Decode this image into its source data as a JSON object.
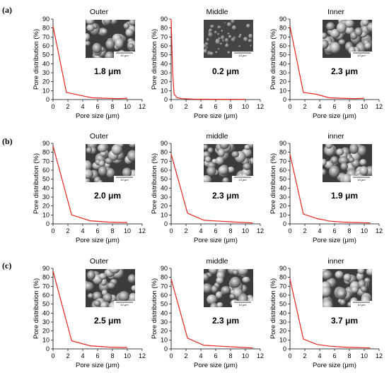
{
  "figure": {
    "row_labels": [
      "(a)",
      "(b)",
      "(c)"
    ]
  },
  "chart_data": [
    {
      "type": "line",
      "row": "(a)",
      "title": "Outer",
      "annotation": "1.8 μm",
      "xlabel": "Pore size (μm)",
      "ylabel": "Pore distribution (%)",
      "xlim": [
        0,
        12
      ],
      "ylim": [
        0,
        90
      ],
      "xticks": [
        0,
        2,
        4,
        6,
        8,
        10,
        12
      ],
      "yticks": [
        0,
        10,
        20,
        30,
        40,
        50,
        60,
        70,
        80,
        90
      ],
      "x": [
        0,
        1.8,
        3.5,
        5.3,
        7,
        8.8,
        10
      ],
      "y": [
        82,
        8,
        5,
        2,
        1.5,
        1,
        1.5
      ],
      "inset_scale_label": "10 μm",
      "line_color": "#e8251e"
    },
    {
      "type": "line",
      "row": "(a)",
      "title": "Middle",
      "annotation": "0.2 μm",
      "xlabel": "Pore size (μm)",
      "ylabel": "Pore distribution (%)",
      "xlim": [
        0,
        12
      ],
      "ylim": [
        0,
        90
      ],
      "xticks": [
        0,
        2,
        4,
        6,
        8,
        10,
        12
      ],
      "yticks": [
        0,
        10,
        20,
        30,
        40,
        50,
        60,
        70,
        80,
        90
      ],
      "x": [
        0,
        0.2,
        0.4,
        0.8,
        1.5,
        3,
        6,
        10
      ],
      "y": [
        90,
        30,
        6,
        2,
        1,
        0.5,
        0.3,
        0.2
      ],
      "inset_scale_label": "10 μm",
      "line_color": "#e8251e"
    },
    {
      "type": "line",
      "row": "(a)",
      "title": "Inner",
      "annotation": "2.3 μm",
      "xlabel": "Pore size (μm)",
      "ylabel": "Pore distribution (%)",
      "xlim": [
        0,
        12
      ],
      "ylim": [
        0,
        90
      ],
      "xticks": [
        0,
        2,
        4,
        6,
        8,
        10,
        12
      ],
      "yticks": [
        0,
        10,
        20,
        30,
        40,
        50,
        60,
        70,
        80,
        90
      ],
      "x": [
        0,
        1.8,
        3.5,
        5.3,
        7,
        8.8,
        10
      ],
      "y": [
        82,
        8,
        6,
        2,
        1.5,
        1,
        1.5
      ],
      "inset_scale_label": "10 μm",
      "line_color": "#e8251e"
    },
    {
      "type": "line",
      "row": "(b)",
      "title": "Outer",
      "annotation": "2.0 μm",
      "xlabel": "Pore size (μm)",
      "ylabel": "Pore distribution (%)",
      "xlim": [
        0,
        12
      ],
      "ylim": [
        0,
        90
      ],
      "xticks": [
        0,
        2,
        4,
        6,
        8,
        10,
        12
      ],
      "yticks": [
        0,
        10,
        20,
        30,
        40,
        50,
        60,
        70,
        80,
        90
      ],
      "x": [
        0,
        2.5,
        5,
        7.5,
        10
      ],
      "y": [
        87,
        10,
        3.5,
        2,
        1.5
      ],
      "inset_scale_label": "10 μm",
      "line_color": "#e8251e"
    },
    {
      "type": "line",
      "row": "(b)",
      "title": "middle",
      "annotation": "2.3 μm",
      "xlabel": "Pore size (μm)",
      "ylabel": "Pore distribution (%)",
      "xlim": [
        0,
        12
      ],
      "ylim": [
        0,
        90
      ],
      "xticks": [
        0,
        2,
        4,
        6,
        8,
        10,
        12
      ],
      "yticks": [
        0,
        10,
        20,
        30,
        40,
        50,
        60,
        70,
        80,
        90
      ],
      "x": [
        0,
        2.2,
        4.4,
        6.6,
        8.8,
        11
      ],
      "y": [
        78,
        12,
        4,
        3,
        2,
        1
      ],
      "inset_scale_label": "10 μm",
      "line_color": "#e8251e"
    },
    {
      "type": "line",
      "row": "(b)",
      "title": "inner",
      "annotation": "1.9 μm",
      "xlabel": "Pore size (μm)",
      "ylabel": "Pore distribution (%)",
      "xlim": [
        0,
        12
      ],
      "ylim": [
        0,
        90
      ],
      "xticks": [
        0,
        2,
        4,
        6,
        8,
        10,
        12
      ],
      "yticks": [
        0,
        10,
        20,
        30,
        40,
        50,
        60,
        70,
        80,
        90
      ],
      "x": [
        0,
        1.8,
        3.6,
        5.4,
        7.2,
        9,
        10.8
      ],
      "y": [
        78,
        11,
        6,
        3,
        2,
        1.5,
        1
      ],
      "inset_scale_label": "10 μm",
      "line_color": "#e8251e"
    },
    {
      "type": "line",
      "row": "(c)",
      "title": "Outer",
      "annotation": "2.5 μm",
      "xlabel": "Pore size (μm)",
      "ylabel": "Pore distribution (%)",
      "xlim": [
        0,
        12
      ],
      "ylim": [
        0,
        90
      ],
      "xticks": [
        0,
        2,
        4,
        6,
        8,
        10,
        12
      ],
      "yticks": [
        0,
        10,
        20,
        30,
        40,
        50,
        60,
        70,
        80,
        90
      ],
      "x": [
        0,
        2.5,
        5,
        7.5,
        10
      ],
      "y": [
        87,
        9,
        3.5,
        2,
        1.5
      ],
      "inset_scale_label": "10 μm",
      "line_color": "#e8251e"
    },
    {
      "type": "line",
      "row": "(c)",
      "title": "middle",
      "annotation": "2.3 μm",
      "xlabel": "Pore size (μm)",
      "ylabel": "Pore distribution (%)",
      "xlim": [
        0,
        12
      ],
      "ylim": [
        0,
        90
      ],
      "xticks": [
        0,
        2,
        4,
        6,
        8,
        10,
        12
      ],
      "yticks": [
        0,
        10,
        20,
        30,
        40,
        50,
        60,
        70,
        80,
        90
      ],
      "x": [
        0,
        2.2,
        4.4,
        6.6,
        8.8,
        11
      ],
      "y": [
        78,
        12,
        4,
        3,
        2,
        1
      ],
      "inset_scale_label": "10 μm",
      "line_color": "#e8251e"
    },
    {
      "type": "line",
      "row": "(c)",
      "title": "inner",
      "annotation": "3.7 μm",
      "xlabel": "Pore size (μm)",
      "ylabel": "Pore distribution (%)",
      "xlim": [
        0,
        12
      ],
      "ylim": [
        0,
        90
      ],
      "xticks": [
        0,
        2,
        4,
        6,
        8,
        10,
        12
      ],
      "yticks": [
        0,
        10,
        20,
        30,
        40,
        50,
        60,
        70,
        80,
        90
      ],
      "x": [
        0,
        1.8,
        3.6,
        5.4,
        7.2,
        9,
        10.8
      ],
      "y": [
        78,
        11,
        5,
        3,
        2,
        1.5,
        1
      ],
      "inset_scale_label": "10 μm",
      "line_color": "#e8251e"
    }
  ]
}
